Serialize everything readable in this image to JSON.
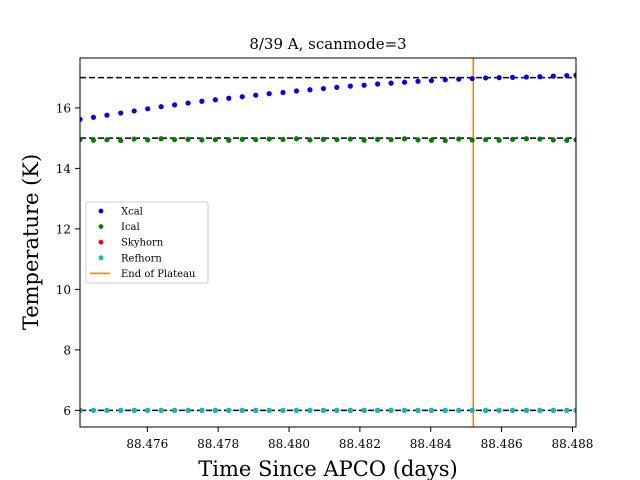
{
  "chart_data": {
    "type": "scatter",
    "title": "8/39 A, scanmode=3",
    "xlabel": "Time Since APCO (days)",
    "ylabel": "Temperature (K)",
    "xlim": [
      88.4741,
      88.4881
    ],
    "ylim": [
      5.45,
      17.65
    ],
    "xticks": [
      88.476,
      88.478,
      88.48,
      88.482,
      88.484,
      88.486,
      88.488
    ],
    "xtick_labels": [
      "88.476",
      "88.478",
      "88.480",
      "88.482",
      "88.484",
      "88.486",
      "88.488"
    ],
    "yticks": [
      6,
      8,
      10,
      12,
      14,
      16
    ],
    "ytick_labels": [
      "6",
      "8",
      "10",
      "12",
      "14",
      "16"
    ],
    "grid": false,
    "legend_position": "center-left",
    "reference_lines": [
      17.0,
      15.0,
      6.0
    ],
    "end_of_plateau_x": 88.4852,
    "x": [
      88.4741,
      88.47448,
      88.47486,
      88.47525,
      88.47563,
      88.47601,
      88.47639,
      88.47677,
      88.47715,
      88.47754,
      88.47792,
      88.4783,
      88.47868,
      88.47906,
      88.47944,
      88.47983,
      88.48021,
      88.48059,
      88.48097,
      88.48135,
      88.48173,
      88.48212,
      88.4825,
      88.48288,
      88.48326,
      88.48364,
      88.48402,
      88.48441,
      88.48479,
      88.48517,
      88.48555,
      88.48593,
      88.48631,
      88.4867,
      88.48708,
      88.48746,
      88.48784,
      88.4881
    ],
    "series": [
      {
        "name": "Xcal",
        "color": "#0000ff",
        "values": [
          15.62,
          15.69,
          15.76,
          15.83,
          15.9,
          15.97,
          16.04,
          16.1,
          16.16,
          16.22,
          16.27,
          16.32,
          16.37,
          16.42,
          16.47,
          16.51,
          16.56,
          16.6,
          16.64,
          16.68,
          16.72,
          16.75,
          16.79,
          16.82,
          16.85,
          16.88,
          16.9,
          16.93,
          16.95,
          16.97,
          16.99,
          17.0,
          17.01,
          17.02,
          17.03,
          17.05,
          17.07,
          17.08
        ]
      },
      {
        "name": "Ical",
        "color": "#008000",
        "values": [
          14.96,
          14.93,
          14.95,
          14.92,
          14.97,
          14.94,
          14.98,
          14.95,
          14.96,
          14.94,
          14.95,
          14.93,
          14.96,
          14.95,
          14.97,
          14.96,
          14.98,
          14.94,
          14.96,
          14.95,
          14.97,
          14.93,
          14.96,
          14.95,
          14.98,
          14.94,
          14.93,
          14.92,
          14.97,
          14.94,
          14.95,
          14.93,
          14.96,
          14.98,
          14.97,
          14.94,
          14.93,
          14.95
        ]
      },
      {
        "name": "Skyhorn",
        "color": "#ff0000",
        "values": [
          6.0,
          6.0,
          6.0,
          6.0,
          6.0,
          6.0,
          6.0,
          6.0,
          6.0,
          6.0,
          6.0,
          6.0,
          6.0,
          6.0,
          6.0,
          6.0,
          6.0,
          6.0,
          6.0,
          6.0,
          6.0,
          6.0,
          6.0,
          6.0,
          6.0,
          6.0,
          6.0,
          6.0,
          6.0,
          6.0,
          6.0,
          6.0,
          6.0,
          6.0,
          6.0,
          6.0,
          6.0,
          6.0
        ]
      },
      {
        "name": "Refhorn",
        "color": "#00bfbf",
        "values": [
          6.0,
          6.0,
          6.0,
          6.0,
          6.0,
          6.0,
          6.0,
          6.0,
          6.0,
          6.0,
          6.0,
          6.0,
          6.0,
          6.0,
          6.0,
          6.0,
          6.0,
          6.0,
          6.0,
          6.0,
          6.0,
          6.0,
          6.0,
          6.0,
          6.0,
          6.0,
          6.0,
          6.0,
          6.0,
          6.0,
          6.0,
          6.0,
          6.0,
          6.0,
          6.0,
          6.0,
          6.0,
          6.0
        ]
      }
    ],
    "legend": [
      {
        "label": "Xcal",
        "kind": "marker",
        "color": "#0000ff"
      },
      {
        "label": "Ical",
        "kind": "marker",
        "color": "#008000"
      },
      {
        "label": "Skyhorn",
        "kind": "marker",
        "color": "#ff0000"
      },
      {
        "label": "Refhorn",
        "kind": "marker",
        "color": "#00bfbf"
      },
      {
        "label": "End of Plateau",
        "kind": "line",
        "color": "#ff7f0e"
      }
    ]
  }
}
